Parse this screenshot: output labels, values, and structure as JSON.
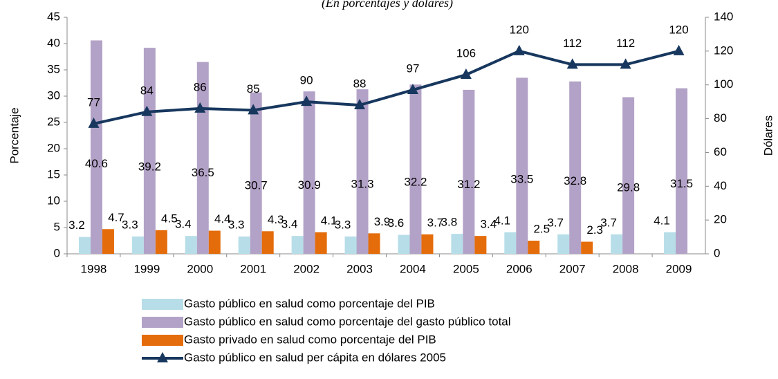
{
  "chart_data": {
    "type": "bar_line",
    "subtitle": "(En porcentajes y dólares)",
    "ylabel": "Porcentaje",
    "y2label": "Dólares",
    "categories": [
      "1998",
      "1999",
      "2000",
      "2001",
      "2002",
      "2003",
      "2004",
      "2005",
      "2006",
      "2007",
      "2008",
      "2009"
    ],
    "ylim": [
      0,
      45
    ],
    "yticks": [
      0,
      5,
      10,
      15,
      20,
      25,
      30,
      35,
      40,
      45
    ],
    "y2lim": [
      0,
      140
    ],
    "y2ticks": [
      0,
      20,
      40,
      60,
      80,
      100,
      120,
      140
    ],
    "series": [
      {
        "name": "Gasto público en salud como porcentaje del PIB",
        "color": "#b7dee8",
        "kind": "bar",
        "values": [
          3.2,
          3.3,
          3.4,
          3.3,
          3.4,
          3.3,
          3.6,
          3.8,
          4.1,
          3.7,
          3.7,
          4.1
        ]
      },
      {
        "name": "Gasto público en salud como porcentaje del gasto público total",
        "color": "#b3a2c7",
        "kind": "bar",
        "values": [
          40.6,
          39.2,
          36.5,
          30.7,
          30.9,
          31.3,
          32.2,
          31.2,
          33.5,
          32.8,
          29.8,
          31.5
        ]
      },
      {
        "name": "Gasto privado en salud como porcentaje del PIB",
        "color": "#e46c0a",
        "kind": "bar",
        "values": [
          4.7,
          4.5,
          4.4,
          4.3,
          4.1,
          3.9,
          3.7,
          3.4,
          2.5,
          2.3,
          null,
          null
        ]
      },
      {
        "name": "Gasto público en salud per cápita en dólares 2005",
        "color": "#17375e",
        "kind": "line",
        "axis": "y2",
        "values": [
          77,
          84,
          86,
          85,
          90,
          88,
          97,
          106,
          120,
          112,
          112,
          120
        ]
      }
    ]
  }
}
